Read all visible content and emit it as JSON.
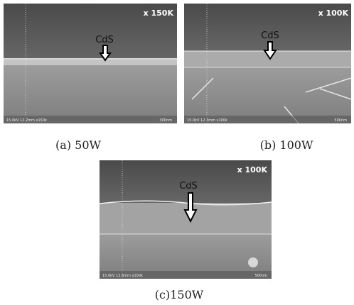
{
  "panels": [
    {
      "magnification": "x 150K",
      "label": "CdS",
      "info": "15.0kV 12.2mm x150k",
      "scale": "300nm",
      "caption": "(a) 50W"
    },
    {
      "magnification": "x 100K",
      "label": "CdS",
      "info": "15.0kV 12.3mm x100k",
      "scale": "500nm",
      "caption": "(b) 100W"
    },
    {
      "magnification": "x 100K",
      "label": "CdS",
      "info": "15.0kV 12.6mm x100k",
      "scale": "500nm",
      "caption": "(c)150W"
    }
  ]
}
